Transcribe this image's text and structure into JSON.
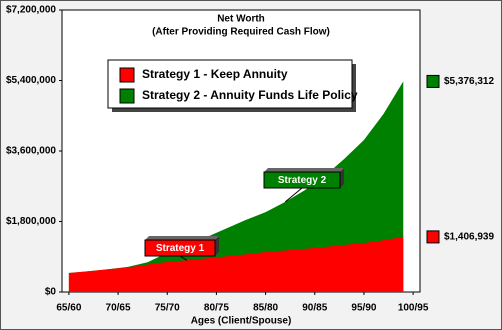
{
  "chart_data": {
    "type": "area",
    "title": "Net Worth",
    "subtitle": "(After Providing Required Cash Flow)",
    "x_label": "Ages (Client/Spouse)",
    "x": [
      65,
      67,
      69,
      71,
      73,
      75,
      77,
      79,
      81,
      83,
      85,
      87,
      89,
      91,
      93,
      95,
      97,
      99
    ],
    "xlim": [
      64.3,
      100.7
    ],
    "xticks": [
      {
        "value": 65,
        "label": "65/60"
      },
      {
        "value": 70,
        "label": "70/65"
      },
      {
        "value": 75,
        "label": "75/70"
      },
      {
        "value": 80,
        "label": "80/75"
      },
      {
        "value": 85,
        "label": "85/80"
      },
      {
        "value": 90,
        "label": "90/85"
      },
      {
        "value": 95,
        "label": "95/90"
      },
      {
        "value": 100,
        "label": "100/95"
      }
    ],
    "ylim": [
      0,
      7200000
    ],
    "yticks": [
      {
        "value": 0,
        "label": "$0"
      },
      {
        "value": 1800000,
        "label": "$1,800,000"
      },
      {
        "value": 3600000,
        "label": "$3,600,000"
      },
      {
        "value": 5400000,
        "label": "$5,400,000"
      },
      {
        "value": 7200000,
        "label": "$7,200,000"
      }
    ],
    "series": [
      {
        "name": "Strategy 1 -  Keep Annuity",
        "color": "#ff0000",
        "annotation": "Strategy 1",
        "values": [
          485000,
          530000,
          580000,
          630000,
          700000,
          766000,
          810000,
          860000,
          910000,
          960000,
          1020000,
          1060000,
          1100000,
          1150000,
          1200000,
          1250000,
          1320000,
          1406939
        ],
        "value_labels": [
          null,
          null,
          null,
          null,
          null,
          null,
          null,
          null,
          null,
          null,
          null,
          null,
          null,
          null,
          null,
          null,
          null,
          "$1,406,939"
        ]
      },
      {
        "name": "Strategy 2 -  Annuity Funds Life Policy",
        "color": "#008000",
        "annotation": "Strategy 2",
        "values": [
          485000,
          530000,
          580000,
          640000,
          760000,
          1000000,
          1180000,
          1400000,
          1620000,
          1840000,
          2040000,
          2300000,
          2600000,
          2960000,
          3400000,
          3880000,
          4550000,
          5376312
        ],
        "value_labels": [
          null,
          null,
          null,
          null,
          null,
          null,
          null,
          null,
          null,
          null,
          null,
          null,
          null,
          null,
          null,
          null,
          null,
          "$5,376,312"
        ]
      }
    ]
  }
}
